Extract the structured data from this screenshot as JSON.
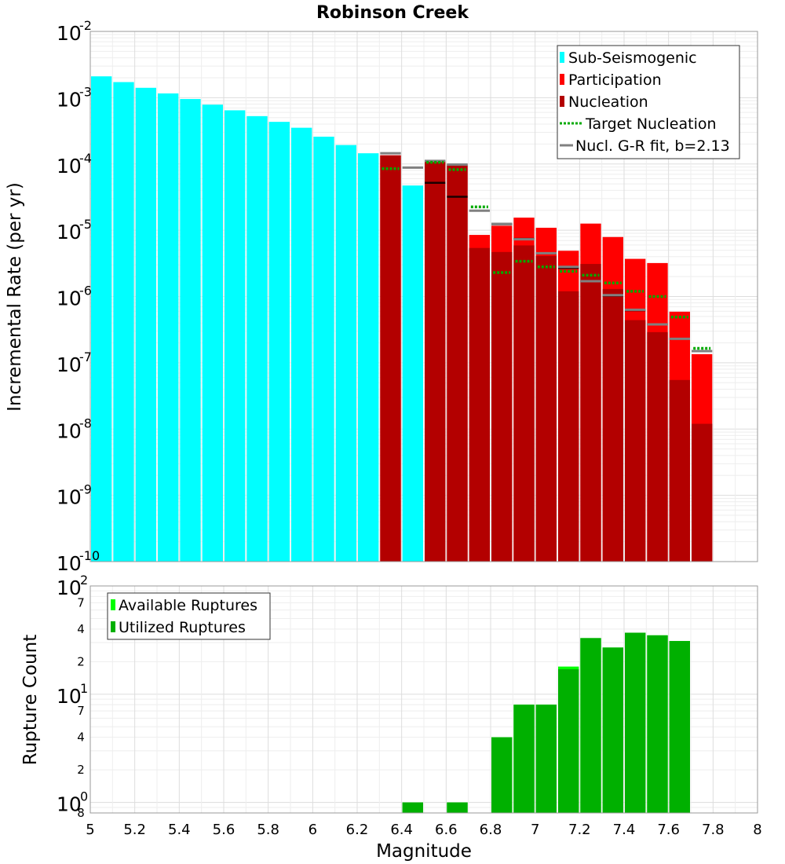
{
  "title": "Robinson Creek",
  "colors": {
    "sub_seismogenic": "#00FFFF",
    "participation": "#FF0000",
    "nucleation": "#B30000",
    "target": "#00AA00",
    "gr_fit": "#808080",
    "available": "#00FF00",
    "utilized": "#00B000"
  },
  "chart_data": [
    {
      "type": "bar",
      "name": "mfd",
      "ylabel": "Incremental Rate (per yr)",
      "yscale": "log",
      "ylim": [
        1e-10,
        0.01
      ],
      "xlim": [
        5,
        8
      ],
      "ytick_labels": [
        {
          "mant": "10",
          "exp": "-2"
        },
        {
          "mant": "10",
          "exp": "-3"
        },
        {
          "mant": "10",
          "exp": "-4"
        },
        {
          "mant": "10",
          "exp": "-5"
        },
        {
          "mant": "10",
          "exp": "-6"
        },
        {
          "mant": "10",
          "exp": "-7"
        },
        {
          "mant": "10",
          "exp": "-8"
        },
        {
          "mant": "10",
          "exp": "-9"
        },
        {
          "mant": "10",
          "exp": "-10"
        }
      ],
      "legend": [
        {
          "label": "Sub-Seismogenic"
        },
        {
          "label": "Participation"
        },
        {
          "label": "Nucleation"
        },
        {
          "label": "Target Nucleation"
        },
        {
          "label": "Nucl. G-R fit, b=2.13"
        }
      ],
      "sub_seismogenic": {
        "x": [
          5.05,
          5.15,
          5.25,
          5.35,
          5.45,
          5.55,
          5.65,
          5.75,
          5.85,
          5.95,
          6.05,
          6.15,
          6.25,
          6.45
        ],
        "values": [
          0.0021,
          0.00172,
          0.00141,
          0.00116,
          0.000955,
          0.000785,
          0.000645,
          0.000527,
          0.000432,
          0.000352,
          0.000258,
          0.000193,
          0.000145,
          4.73e-05
        ]
      },
      "participation": {
        "x": [
          6.35,
          6.55,
          6.65,
          6.75,
          6.85,
          6.95,
          7.05,
          7.15,
          7.25,
          7.35,
          7.45,
          7.55,
          7.65,
          7.75
        ],
        "values": [
          0.000135,
          0.000112,
          0.0001,
          8.5e-06,
          1.17e-05,
          1.55e-05,
          1.09e-05,
          4.9e-06,
          1.26e-05,
          7.9e-06,
          3.7e-06,
          3.2e-06,
          5.9e-07,
          1.35e-07
        ]
      },
      "nucleation": {
        "x": [
          6.35,
          6.55,
          6.65,
          6.75,
          6.85,
          6.95,
          7.05,
          7.15,
          7.25,
          7.35,
          7.45,
          7.55,
          7.65,
          7.75
        ],
        "values": [
          0.000135,
          0.000107,
          9.55e-05,
          5.4e-06,
          4.7e-06,
          5.9e-06,
          4.1e-06,
          1.2e-06,
          3.1e-06,
          1.3e-06,
          4.4e-07,
          2.9e-07,
          5.5e-08,
          1.2e-08
        ]
      },
      "target_nucleation": {
        "x": [
          6.35,
          6.55,
          6.65,
          6.75,
          6.85,
          6.95,
          7.05,
          7.15,
          7.25,
          7.35,
          7.45,
          7.55,
          7.65,
          7.75
        ],
        "values": [
          8.5e-05,
          0.000106,
          8.2e-05,
          2.25e-05,
          2.3e-06,
          3.4e-06,
          2.8e-06,
          2.4e-06,
          2.1e-06,
          1.6e-06,
          1.2e-06,
          1e-06,
          4.9e-07,
          1.65e-07
        ]
      },
      "gr_fit": {
        "x": [
          6.35,
          6.45,
          6.55,
          6.65,
          6.75,
          6.85,
          6.95,
          7.05,
          7.15,
          7.25,
          7.35,
          7.45,
          7.55,
          7.65,
          7.75
        ],
        "values": [
          0.000145,
          8.8e-05,
          0.000111,
          9.8e-05,
          1.97e-05,
          1.25e-05,
          7.3e-06,
          4.5e-06,
          2.8e-06,
          1.7e-06,
          1.05e-06,
          6.3e-07,
          3.8e-07,
          2.3e-07,
          1.5e-07
        ]
      },
      "nucl_markers": {
        "x": [
          6.55,
          6.65,
          6.85,
          6.95,
          7.05,
          7.15,
          7.25,
          7.35,
          7.45,
          7.55,
          7.65
        ],
        "values": [
          5.2e-05,
          3.2e-05,
          1.23e-05,
          7.4e-06,
          4.5e-06,
          2.7e-06,
          1.7e-06,
          1.03e-06,
          6.2e-07,
          3.8e-07,
          2.3e-07
        ]
      }
    },
    {
      "type": "bar",
      "name": "rupture_count",
      "ylabel": "Rupture Count",
      "xlabel": "Magnitude",
      "yscale": "log",
      "ylim": [
        0.8,
        100
      ],
      "xlim": [
        5,
        8
      ],
      "ytick_labels": [
        {
          "mant": "10",
          "exp": "2",
          "value": 100
        },
        {
          "mant": "10",
          "exp": "1",
          "value": 10
        },
        {
          "mant": "10",
          "exp": "0",
          "value": 1
        }
      ],
      "minor_labels": [
        {
          "label": "7",
          "value": 70
        },
        {
          "label": "4",
          "value": 40
        },
        {
          "label": "2",
          "value": 20
        },
        {
          "label": "7",
          "value": 7
        },
        {
          "label": "4",
          "value": 4
        },
        {
          "label": "2",
          "value": 2
        },
        {
          "label": "8",
          "value": 0.8
        }
      ],
      "xticks": [
        "5",
        "5.2",
        "5.4",
        "5.6",
        "5.8",
        "6",
        "6.2",
        "6.4",
        "6.6",
        "6.8",
        "7",
        "7.2",
        "7.4",
        "7.6",
        "7.8",
        "8"
      ],
      "legend": [
        {
          "label": "Available Ruptures"
        },
        {
          "label": "Utilized Ruptures"
        }
      ],
      "x": [
        6.45,
        6.65,
        6.85,
        6.95,
        7.05,
        7.15,
        7.25,
        7.35,
        7.45,
        7.55,
        7.65
      ],
      "available": [
        1,
        1,
        4,
        8,
        8,
        18,
        33,
        27,
        37,
        35,
        31
      ],
      "utilized": [
        1,
        1,
        4,
        8,
        8,
        17,
        33,
        27,
        37,
        35,
        31
      ]
    }
  ]
}
